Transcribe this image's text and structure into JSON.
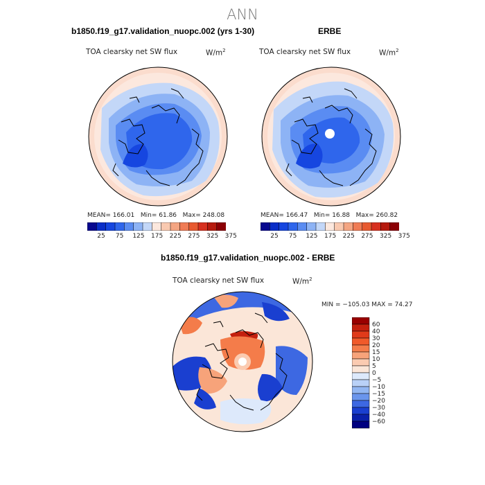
{
  "page_title": "ANN",
  "chart_data": [
    {
      "type": "heatmap",
      "projection": "polar-stereographic",
      "title": "b1850.f19_g17.validation_nuopc.002 (yrs 1-30)",
      "subtitle": "TOA clearsky net SW flux",
      "units_base": "W/m",
      "units_exp": "2",
      "stats": {
        "mean_label": "MEAN=",
        "mean": "166.01",
        "min_label": "Min=",
        "min": "61.86",
        "max_label": "Max=",
        "max": "248.08"
      },
      "colorbar_ticks": [
        "25",
        "75",
        "125",
        "175",
        "225",
        "275",
        "325",
        "375"
      ]
    },
    {
      "type": "heatmap",
      "projection": "polar-stereographic",
      "title": "ERBE",
      "subtitle": "TOA clearsky net SW flux",
      "units_base": "W/m",
      "units_exp": "2",
      "stats": {
        "mean_label": "MEAN=",
        "mean": "166.47",
        "min_label": "Min=",
        "min": "16.88",
        "max_label": "Max=",
        "max": "260.82"
      },
      "colorbar_ticks": [
        "25",
        "75",
        "125",
        "175",
        "225",
        "275",
        "325",
        "375"
      ]
    },
    {
      "type": "heatmap",
      "projection": "polar-stereographic",
      "title": "b1850.f19_g17.validation_nuopc.002 - ERBE",
      "subtitle": "TOA clearsky net SW flux",
      "units_base": "W/m",
      "units_exp": "2",
      "stats_line": "MIN = −105.03 MAX =  74.27",
      "colorbar_ticks": [
        "60",
        "40",
        "30",
        "20",
        "15",
        "10",
        "5",
        "0",
        "−5",
        "−10",
        "−15",
        "−20",
        "−30",
        "−40",
        "−60"
      ]
    }
  ],
  "colors": {
    "abs_scale": [
      "#08088f",
      "#0a2ec8",
      "#1646e0",
      "#2f66ec",
      "#5a8cf2",
      "#8db3f5",
      "#c3d7f8",
      "#fce8de",
      "#f9c9b0",
      "#f4a582",
      "#f07c55",
      "#e85a30",
      "#d7301f",
      "#b61a0e",
      "#8b0005"
    ],
    "diff_scale": [
      "#990000",
      "#c4200e",
      "#e03a1a",
      "#f05a2a",
      "#f47c4a",
      "#f7a37a",
      "#fbcbb1",
      "#fbe6d8",
      "#dde9fb",
      "#b9d1f7",
      "#92b6f2",
      "#6a95ec",
      "#3d68e2",
      "#1a3fd0",
      "#0a20aa",
      "#000080"
    ]
  }
}
